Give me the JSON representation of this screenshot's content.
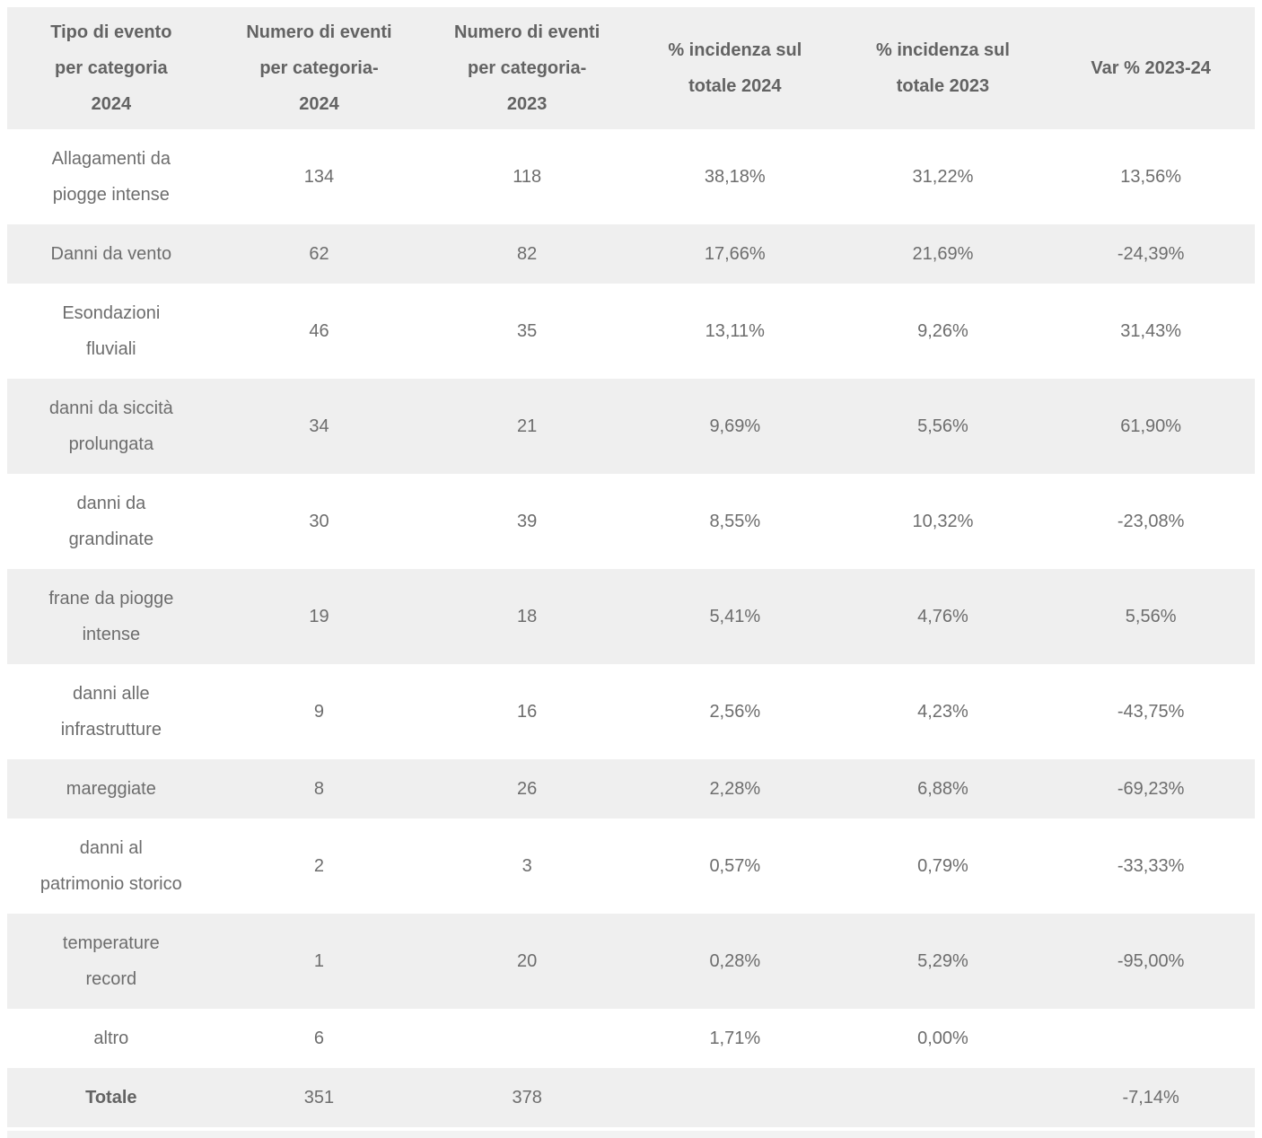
{
  "colors": {
    "stripe": "#efefef",
    "body_text": "#6d6d6d",
    "header_text": "#636363",
    "bottom_strip": "#f2f2f2"
  },
  "chart_data": {
    "type": "table",
    "columns": [
      {
        "label": [
          "Tipo di evento",
          "per categoria",
          "2024"
        ]
      },
      {
        "label": [
          "Numero di eventi",
          "per categoria-",
          "2024"
        ]
      },
      {
        "label": [
          "Numero di eventi",
          "per categoria-",
          "2023"
        ]
      },
      {
        "label": [
          "% incidenza sul",
          "totale 2024"
        ]
      },
      {
        "label": [
          "% incidenza sul",
          "totale 2023"
        ]
      },
      {
        "label": [
          "Var % 2023-24"
        ]
      }
    ],
    "rows": [
      {
        "category": [
          "Allagamenti da",
          "piogge intense"
        ],
        "n2024": "134",
        "n2023": "118",
        "pct2024": "38,18%",
        "pct2023": "31,22%",
        "var": "13,56%"
      },
      {
        "category": [
          "Danni da vento"
        ],
        "n2024": "62",
        "n2023": "82",
        "pct2024": "17,66%",
        "pct2023": "21,69%",
        "var": "-24,39%"
      },
      {
        "category": [
          "Esondazioni",
          "fluviali"
        ],
        "n2024": "46",
        "n2023": "35",
        "pct2024": "13,11%",
        "pct2023": "9,26%",
        "var": "31,43%"
      },
      {
        "category": [
          "danni da siccità",
          "prolungata"
        ],
        "n2024": "34",
        "n2023": "21",
        "pct2024": "9,69%",
        "pct2023": "5,56%",
        "var": "61,90%"
      },
      {
        "category": [
          "danni da",
          "grandinate"
        ],
        "n2024": "30",
        "n2023": "39",
        "pct2024": "8,55%",
        "pct2023": "10,32%",
        "var": "-23,08%"
      },
      {
        "category": [
          "frane da piogge",
          "intense"
        ],
        "n2024": "19",
        "n2023": "18",
        "pct2024": "5,41%",
        "pct2023": "4,76%",
        "var": "5,56%"
      },
      {
        "category": [
          "danni alle",
          "infrastrutture"
        ],
        "n2024": "9",
        "n2023": "16",
        "pct2024": "2,56%",
        "pct2023": "4,23%",
        "var": "-43,75%"
      },
      {
        "category": [
          "mareggiate"
        ],
        "n2024": "8",
        "n2023": "26",
        "pct2024": "2,28%",
        "pct2023": "6,88%",
        "var": "-69,23%"
      },
      {
        "category": [
          "danni al",
          "patrimonio storico"
        ],
        "n2024": "2",
        "n2023": "3",
        "pct2024": "0,57%",
        "pct2023": "0,79%",
        "var": "-33,33%"
      },
      {
        "category": [
          "temperature",
          "record"
        ],
        "n2024": "1",
        "n2023": "20",
        "pct2024": "0,28%",
        "pct2023": "5,29%",
        "var": "-95,00%"
      },
      {
        "category": [
          "altro"
        ],
        "n2024": "6",
        "n2023": "",
        "pct2024": "1,71%",
        "pct2023": "0,00%",
        "var": ""
      },
      {
        "category": [
          "Totale"
        ],
        "n2024": "351",
        "n2023": "378",
        "pct2024": "",
        "pct2023": "",
        "var": "-7,14%"
      }
    ]
  }
}
